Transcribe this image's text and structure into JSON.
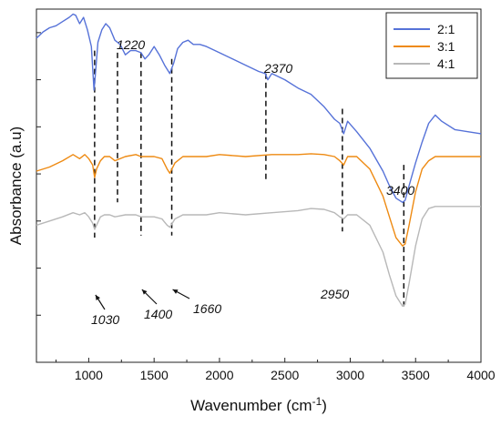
{
  "chart_data": {
    "type": "line",
    "title": "",
    "xlabel": "Wavenumber (cm",
    "xlabel_superscript": "-1",
    "xlabel_suffix": ")",
    "ylabel": "Absorbance (a.u)",
    "xlim": [
      600,
      4000
    ],
    "ylim": [
      0,
      8.5
    ],
    "x_ticks": [
      1000,
      1500,
      2000,
      2500,
      3000,
      3500,
      4000
    ],
    "y_tick_labels_shown": false,
    "y_ticks_count": 7,
    "legend_position": "top-right",
    "colors": {
      "2:1": "#5672d8",
      "3:1": "#ee8a12",
      "4:1": "#b8b8b8"
    },
    "series": [
      {
        "name": "2:1",
        "x": [
          600,
          650,
          700,
          750,
          800,
          850,
          880,
          900,
          930,
          960,
          990,
          1020,
          1040,
          1050,
          1070,
          1100,
          1130,
          1160,
          1200,
          1240,
          1280,
          1320,
          1360,
          1400,
          1430,
          1460,
          1500,
          1540,
          1580,
          1620,
          1650,
          1680,
          1720,
          1760,
          1800,
          1850,
          1900,
          2000,
          2100,
          2200,
          2300,
          2350,
          2370,
          2400,
          2500,
          2600,
          2700,
          2800,
          2880,
          2920,
          2950,
          2980,
          3050,
          3150,
          3250,
          3300,
          3350,
          3400,
          3420,
          3450,
          3500,
          3550,
          3600,
          3650,
          3700,
          3800,
          3900,
          4000
        ],
        "y": [
          7.8,
          7.95,
          8.05,
          8.1,
          8.2,
          8.3,
          8.38,
          8.35,
          8.15,
          8.3,
          8.0,
          7.6,
          6.55,
          6.9,
          7.7,
          8.0,
          8.15,
          8.05,
          7.75,
          7.65,
          7.4,
          7.5,
          7.5,
          7.45,
          7.3,
          7.4,
          7.6,
          7.4,
          7.15,
          6.95,
          7.2,
          7.55,
          7.7,
          7.75,
          7.65,
          7.65,
          7.6,
          7.45,
          7.3,
          7.15,
          7.0,
          6.95,
          6.8,
          6.95,
          6.8,
          6.6,
          6.45,
          6.15,
          5.85,
          5.75,
          5.5,
          5.8,
          5.55,
          5.15,
          4.6,
          4.25,
          3.95,
          3.85,
          3.9,
          4.25,
          4.8,
          5.3,
          5.75,
          5.95,
          5.8,
          5.6,
          5.55,
          5.5
        ]
      },
      {
        "name": "3:1",
        "x": [
          600,
          700,
          800,
          880,
          930,
          970,
          1000,
          1030,
          1045,
          1060,
          1090,
          1120,
          1160,
          1200,
          1280,
          1360,
          1400,
          1450,
          1500,
          1560,
          1600,
          1620,
          1660,
          1720,
          1800,
          1900,
          2000,
          2200,
          2400,
          2600,
          2700,
          2800,
          2880,
          2920,
          2950,
          2980,
          3050,
          3150,
          3250,
          3300,
          3350,
          3400,
          3420,
          3450,
          3500,
          3550,
          3600,
          3650,
          3700,
          3800,
          3900,
          4000
        ],
        "y": [
          4.6,
          4.7,
          4.85,
          5.0,
          4.9,
          5.0,
          4.9,
          4.75,
          4.45,
          4.65,
          4.85,
          4.95,
          4.95,
          4.85,
          4.95,
          5.0,
          4.95,
          4.95,
          4.95,
          4.9,
          4.65,
          4.55,
          4.8,
          4.95,
          4.95,
          4.95,
          5.0,
          4.95,
          5.0,
          5.0,
          5.02,
          5.0,
          4.95,
          4.85,
          4.75,
          4.95,
          4.95,
          4.65,
          4.0,
          3.5,
          3.0,
          2.8,
          2.85,
          3.3,
          4.1,
          4.65,
          4.85,
          4.95,
          4.95,
          4.95,
          4.95,
          4.95
        ]
      },
      {
        "name": "4:1",
        "x": [
          600,
          700,
          800,
          880,
          930,
          970,
          1000,
          1030,
          1045,
          1060,
          1090,
          1120,
          1160,
          1200,
          1280,
          1360,
          1400,
          1450,
          1500,
          1560,
          1600,
          1620,
          1660,
          1720,
          1800,
          1900,
          2000,
          2200,
          2400,
          2600,
          2700,
          2800,
          2880,
          2920,
          2950,
          2980,
          3050,
          3150,
          3250,
          3300,
          3350,
          3400,
          3420,
          3450,
          3500,
          3550,
          3600,
          3650,
          3700,
          3800,
          3900,
          4000
        ],
        "y": [
          3.3,
          3.4,
          3.5,
          3.6,
          3.55,
          3.6,
          3.5,
          3.35,
          3.2,
          3.3,
          3.5,
          3.55,
          3.55,
          3.5,
          3.55,
          3.55,
          3.5,
          3.5,
          3.5,
          3.45,
          3.3,
          3.25,
          3.45,
          3.55,
          3.55,
          3.55,
          3.6,
          3.55,
          3.6,
          3.65,
          3.7,
          3.68,
          3.6,
          3.5,
          3.45,
          3.55,
          3.55,
          3.3,
          2.65,
          2.1,
          1.6,
          1.35,
          1.4,
          1.9,
          2.8,
          3.45,
          3.7,
          3.75,
          3.75,
          3.75,
          3.75,
          3.75
        ]
      }
    ],
    "annotations": [
      {
        "text": "1030",
        "x": 1045,
        "ymin": 3.0,
        "ymax": 7.5
      },
      {
        "text": "1220",
        "x": 1220,
        "ymin": 3.85,
        "ymax": 7.45
      },
      {
        "text": "1400",
        "x": 1400,
        "ymin": 3.05,
        "ymax": 7.45
      },
      {
        "text": "1660",
        "x": 1635,
        "ymin": 3.05,
        "ymax": 7.3
      },
      {
        "text": "2370",
        "x": 2355,
        "ymin": 4.35,
        "ymax": 6.95
      },
      {
        "text": "2950",
        "x": 2940,
        "ymin": 3.15,
        "ymax": 6.1
      },
      {
        "text": "3400",
        "x": 3410,
        "ymin": 1.35,
        "ymax": 4.75
      }
    ]
  }
}
